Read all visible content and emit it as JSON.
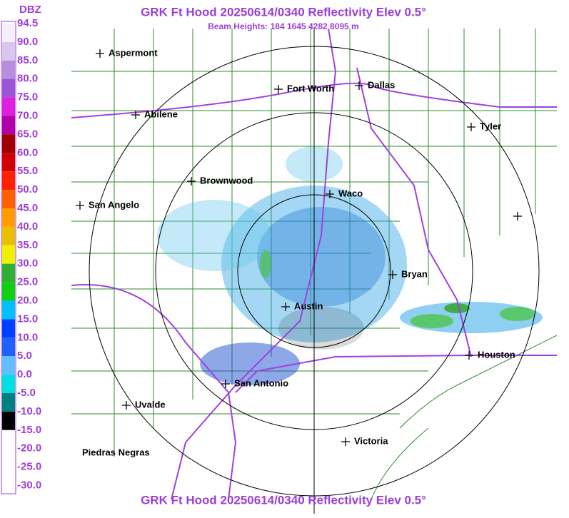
{
  "header": {
    "title": "GRK Ft Hood 20250614/0340 Reflectivity Elev 0.5°",
    "subtitle": "Beam Heights: 184 1645 4282 8095 m"
  },
  "footer": {
    "title": "GRK Ft Hood 20250614/0340 Reflectivity Elev 0.5°"
  },
  "legend": {
    "title": "DBZ",
    "labels": [
      "94.5",
      "90.0",
      "85.0",
      "80.0",
      "75.0",
      "70.0",
      "65.0",
      "60.0",
      "55.0",
      "50.0",
      "45.0",
      "40.0",
      "35.0",
      "30.0",
      "25.0",
      "20.0",
      "15.0",
      "10.0",
      "5.0",
      "0.0",
      "-5.0",
      "-10.0",
      "-15.0",
      "-20.0",
      "-25.0",
      "-30.0"
    ]
  },
  "cities": [
    {
      "label": "Aspermont"
    },
    {
      "label": "Fort Worth"
    },
    {
      "label": "Dallas"
    },
    {
      "label": "Abilene"
    },
    {
      "label": "Tyler"
    },
    {
      "label": "Brownwood"
    },
    {
      "label": "Waco"
    },
    {
      "label": "San Angelo"
    },
    {
      "label": "Bryan"
    },
    {
      "label": "Austin"
    },
    {
      "label": "Houston"
    },
    {
      "label": "San Antonio"
    },
    {
      "label": "Uvalde"
    },
    {
      "label": "Victoria"
    },
    {
      "label": "Piedras Negras"
    }
  ]
}
